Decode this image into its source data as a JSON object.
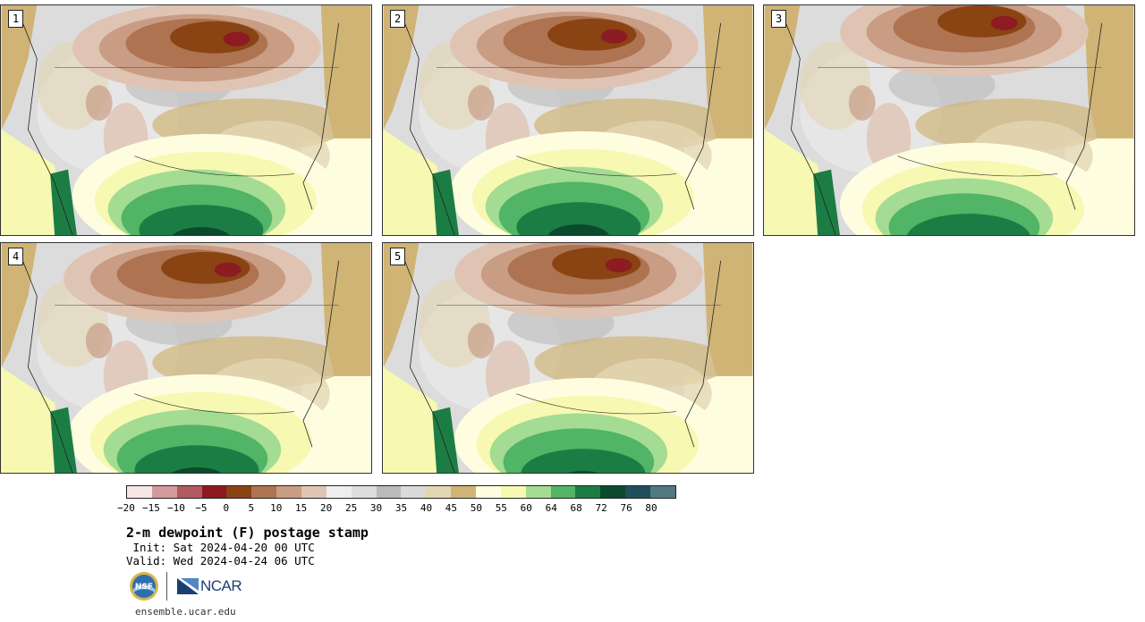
{
  "panels": [
    {
      "label": "1"
    },
    {
      "label": "2"
    },
    {
      "label": "3"
    },
    {
      "label": "4"
    },
    {
      "label": "5"
    }
  ],
  "legend": {
    "colors": [
      "#f6e6e6",
      "#d59a9e",
      "#b15a61",
      "#8c1b22",
      "#8a4313",
      "#ae7350",
      "#c99c84",
      "#dfc4b4",
      "#eeeeee",
      "#dcdcdc",
      "#bababa",
      "#dadada",
      "#e4d6b4",
      "#d0b476",
      "#fefde0",
      "#f7f8b2",
      "#a3dc92",
      "#51b466",
      "#1c7d44",
      "#0b4a2c",
      "#224f5e",
      "#507a80"
    ],
    "ticks": [
      "−20",
      "−15",
      "−10",
      "−5",
      "0",
      "5",
      "10",
      "15",
      "20",
      "25",
      "30",
      "35",
      "40",
      "45",
      "50",
      "55",
      "60",
      "64",
      "68",
      "72",
      "76",
      "80"
    ]
  },
  "title": "2-m dewpoint (F) postage stamp",
  "init": " Init: Sat 2024-04-20 00 UTC",
  "valid": "Valid: Wed 2024-04-24 06 UTC",
  "logos": {
    "nsf": "NSF",
    "ncar": "NCAR"
  },
  "website": "ensemble.ucar.edu"
}
